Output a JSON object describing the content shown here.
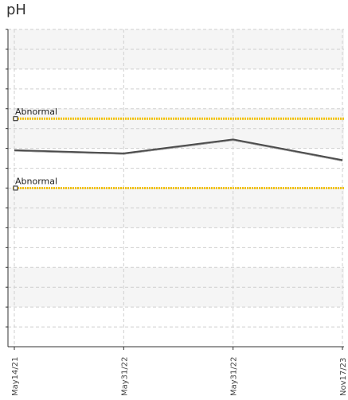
{
  "title": "pH",
  "colors": {
    "series": "#4a4a4a",
    "reference": "#f2c200",
    "band_light": "#f5f5f5",
    "grid": "#cfcfcf",
    "axis": "#333333"
  },
  "chart_data": {
    "type": "line",
    "title": "pH",
    "xlabel": "",
    "ylabel": "",
    "categories": [
      "May14/21",
      "May31/22",
      "May31/22",
      "Nov17/23"
    ],
    "series": [
      {
        "values": [
          6.45,
          6.37,
          6.72,
          6.2
        ]
      }
    ],
    "reference_lines": [
      {
        "label": "Abnormal",
        "value": 7.25
      },
      {
        "label": "Abnormal",
        "value": 5.5
      }
    ],
    "ylim": [
      1.5,
      9.5
    ],
    "grid": true,
    "legend": "none"
  }
}
